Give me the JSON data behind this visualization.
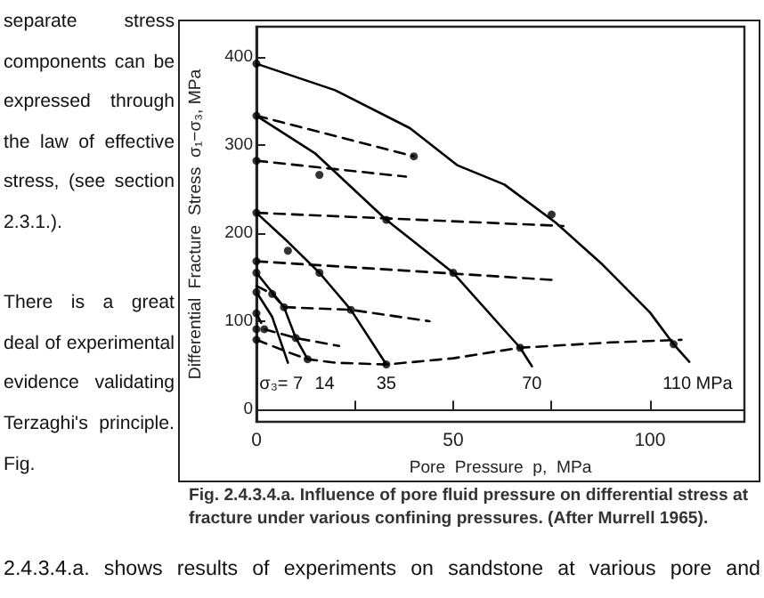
{
  "chart_data": {
    "type": "line",
    "xlabel": "Pore  Pressure  p,  MPa",
    "ylabel": "Differential  Fracture  Stress  σ₁−σ₃, MPa",
    "xlim": [
      0,
      124
    ],
    "ylim": [
      -14,
      434
    ],
    "xticks": [
      0,
      {
        "value": 25,
        "label": null
      },
      50,
      {
        "value": 75,
        "label": null
      },
      100
    ],
    "yticks": [
      0,
      100,
      200,
      300,
      400
    ],
    "marker": "none",
    "series": [
      {
        "color": "#000000",
        "line_style": "solid",
        "x": [
          0,
          20,
          39,
          51,
          63,
          76,
          88,
          100,
          106,
          110
        ],
        "values": [
          392,
          362,
          319,
          277,
          255,
          212,
          164,
          110,
          74,
          54
        ]
      },
      {
        "type": "line",
        "color": "#000000",
        "line_style": "solid",
        "x": [
          0,
          15,
          33,
          50,
          67,
          70
        ],
        "values": [
          333,
          290,
          215,
          155,
          70,
          49
        ]
      },
      {
        "type": "line",
        "color": "#000000",
        "line_style": "solid",
        "x": [
          0,
          8,
          16,
          24,
          33
        ],
        "values": [
          223,
          190,
          155,
          113,
          51
        ]
      },
      {
        "type": "line",
        "color": "#000000",
        "line_style": "solid",
        "x": [
          0,
          7,
          10,
          13
        ],
        "values": [
          155,
          116,
          81,
          57
        ]
      },
      {
        "type": "line",
        "color": "#000000",
        "line_style": "solid",
        "x": [
          0,
          4,
          8
        ],
        "values": [
          133,
          105,
          53
        ]
      },
      {
        "type": "line",
        "color": "#000000",
        "line_style": "dashed",
        "x": [
          0,
          40
        ],
        "values": [
          333,
          287
        ]
      },
      {
        "type": "line",
        "color": "#000000",
        "line_style": "dashed",
        "x": [
          0,
          38
        ],
        "values": [
          282,
          264
        ]
      },
      {
        "type": "line",
        "color": "#000000",
        "line_style": "dashed",
        "x": [
          0,
          78
        ],
        "values": [
          223,
          208
        ]
      },
      {
        "type": "line",
        "color": "#000000",
        "line_style": "dashed",
        "x": [
          0,
          75
        ],
        "values": [
          168,
          147
        ]
      },
      {
        "type": "line",
        "color": "#000000",
        "line_style": "dashed",
        "x": [
          0,
          4,
          7,
          24,
          44
        ],
        "values": [
          140,
          131,
          116,
          113,
          100
        ]
      },
      {
        "type": "line",
        "color": "#000000",
        "line_style": "dashed",
        "x": [
          0,
          2,
          10,
          21
        ],
        "values": [
          109,
          91,
          81,
          72
        ]
      },
      {
        "type": "line",
        "color": "#000000",
        "line_style": "dashed",
        "x": [
          0,
          8,
          13,
          20,
          33,
          50,
          67,
          90,
          108
        ],
        "values": [
          79,
          65,
          57,
          53,
          51,
          58,
          70,
          76,
          79
        ]
      },
      {
        "type": "scatter",
        "color": "#000000",
        "marker": "circle",
        "x": [
          0,
          0,
          0,
          0,
          0,
          0,
          0,
          0,
          0,
          0,
          40,
          16,
          33,
          75,
          8,
          16,
          50,
          106,
          67,
          33,
          24,
          7,
          4,
          2,
          10,
          13
        ],
        "values": [
          392,
          333,
          282,
          223,
          168,
          155,
          133,
          109,
          91,
          79,
          287,
          266,
          215,
          221,
          180,
          155,
          155,
          74,
          70,
          51,
          113,
          116,
          131,
          91,
          81,
          57
        ]
      }
    ],
    "annotations": [
      "Fig. 2.4.3.4.a.  Influence of pore fluid pressure on differential stress at fracture under various confining pressures. (After Murrell 1965).",
      "separate stress components can be expressed through the law of effective stress, (see section 2.3.1.).\nThere is a great deal of experimental evidence validating Terzaghi's principle. Fig.",
      "2.4.3.4.a. shows results of experiments on sandstone at various pore and",
      "σ₃= 7",
      "14",
      "35",
      "70",
      "110 MPa"
    ]
  }
}
